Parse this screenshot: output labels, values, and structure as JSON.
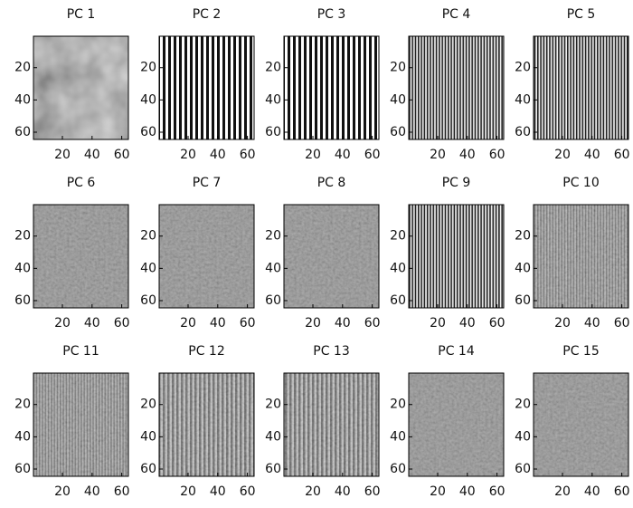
{
  "chart_data": [
    {
      "type": "image",
      "title": "PC 1",
      "xlim": [
        0.5,
        64.5
      ],
      "ylim": [
        0.5,
        64.5
      ],
      "xticks": [
        20,
        40,
        60
      ],
      "yticks": [
        20,
        40,
        60
      ],
      "y_reversed": true
    },
    {
      "type": "image",
      "title": "PC 2",
      "xlim": [
        0.5,
        64.5
      ],
      "ylim": [
        0.5,
        64.5
      ],
      "xticks": [
        20,
        40,
        60
      ],
      "yticks": [
        20,
        40,
        60
      ],
      "y_reversed": true
    },
    {
      "type": "image",
      "title": "PC 3",
      "xlim": [
        0.5,
        64.5
      ],
      "ylim": [
        0.5,
        64.5
      ],
      "xticks": [
        20,
        40,
        60
      ],
      "yticks": [
        20,
        40,
        60
      ],
      "y_reversed": true
    },
    {
      "type": "image",
      "title": "PC 4",
      "xlim": [
        0.5,
        64.5
      ],
      "ylim": [
        0.5,
        64.5
      ],
      "xticks": [
        20,
        40,
        60
      ],
      "yticks": [
        20,
        40,
        60
      ],
      "y_reversed": true
    },
    {
      "type": "image",
      "title": "PC 5",
      "xlim": [
        0.5,
        64.5
      ],
      "ylim": [
        0.5,
        64.5
      ],
      "xticks": [
        20,
        40,
        60
      ],
      "yticks": [
        20,
        40,
        60
      ],
      "y_reversed": true
    },
    {
      "type": "image",
      "title": "PC 6",
      "xlim": [
        0.5,
        64.5
      ],
      "ylim": [
        0.5,
        64.5
      ],
      "xticks": [
        20,
        40,
        60
      ],
      "yticks": [
        20,
        40,
        60
      ],
      "y_reversed": true
    },
    {
      "type": "image",
      "title": "PC 7",
      "xlim": [
        0.5,
        64.5
      ],
      "ylim": [
        0.5,
        64.5
      ],
      "xticks": [
        20,
        40,
        60
      ],
      "yticks": [
        20,
        40,
        60
      ],
      "y_reversed": true
    },
    {
      "type": "image",
      "title": "PC 8",
      "xlim": [
        0.5,
        64.5
      ],
      "ylim": [
        0.5,
        64.5
      ],
      "xticks": [
        20,
        40,
        60
      ],
      "yticks": [
        20,
        40,
        60
      ],
      "y_reversed": true
    },
    {
      "type": "image",
      "title": "PC 9",
      "xlim": [
        0.5,
        64.5
      ],
      "ylim": [
        0.5,
        64.5
      ],
      "xticks": [
        20,
        40,
        60
      ],
      "yticks": [
        20,
        40,
        60
      ],
      "y_reversed": true
    },
    {
      "type": "image",
      "title": "PC 10",
      "xlim": [
        0.5,
        64.5
      ],
      "ylim": [
        0.5,
        64.5
      ],
      "xticks": [
        20,
        40,
        60
      ],
      "yticks": [
        20,
        40,
        60
      ],
      "y_reversed": true
    },
    {
      "type": "image",
      "title": "PC 11",
      "xlim": [
        0.5,
        64.5
      ],
      "ylim": [
        0.5,
        64.5
      ],
      "xticks": [
        20,
        40,
        60
      ],
      "yticks": [
        20,
        40,
        60
      ],
      "y_reversed": true
    },
    {
      "type": "image",
      "title": "PC 12",
      "xlim": [
        0.5,
        64.5
      ],
      "ylim": [
        0.5,
        64.5
      ],
      "xticks": [
        20,
        40,
        60
      ],
      "yticks": [
        20,
        40,
        60
      ],
      "y_reversed": true
    },
    {
      "type": "image",
      "title": "PC 13",
      "xlim": [
        0.5,
        64.5
      ],
      "ylim": [
        0.5,
        64.5
      ],
      "xticks": [
        20,
        40,
        60
      ],
      "yticks": [
        20,
        40,
        60
      ],
      "y_reversed": true
    },
    {
      "type": "image",
      "title": "PC 14",
      "xlim": [
        0.5,
        64.5
      ],
      "ylim": [
        0.5,
        64.5
      ],
      "xticks": [
        20,
        40,
        60
      ],
      "yticks": [
        20,
        40,
        60
      ],
      "y_reversed": true
    },
    {
      "type": "image",
      "title": "PC 15",
      "xlim": [
        0.5,
        64.5
      ],
      "ylim": [
        0.5,
        64.5
      ],
      "xticks": [
        20,
        40,
        60
      ],
      "yticks": [
        20,
        40,
        60
      ],
      "y_reversed": true
    }
  ]
}
